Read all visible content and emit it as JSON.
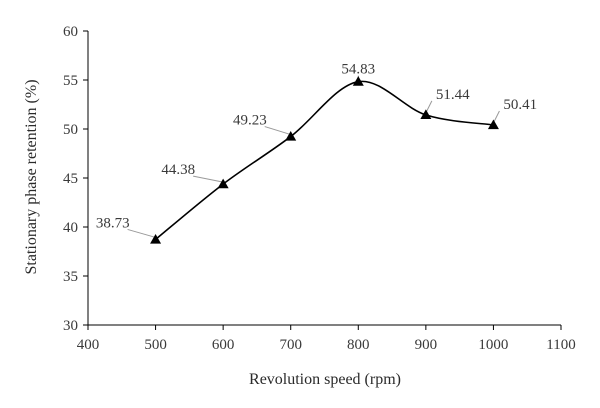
{
  "chart_data": {
    "type": "line",
    "xlabel": "Revolution speed (rpm)",
    "ylabel": "Stationary phase retention (%)",
    "xlim": [
      400,
      1100
    ],
    "ylim": [
      30,
      60
    ],
    "xticks": [
      400,
      500,
      600,
      700,
      800,
      900,
      1000,
      1100
    ],
    "yticks": [
      30,
      35,
      40,
      45,
      50,
      55,
      60
    ],
    "grid": false,
    "smooth": true,
    "marker": "triangle",
    "colors": {
      "line": "#000000",
      "marker": "#000000",
      "axis": "#000000",
      "leader": "#9a9a9a"
    },
    "series": [
      {
        "x": [
          500,
          600,
          700,
          800,
          900,
          1000
        ],
        "values": [
          38.73,
          44.38,
          49.23,
          54.83,
          51.44,
          50.41
        ],
        "labels": [
          "38.73",
          "44.38",
          "49.23",
          "54.83",
          "51.44",
          "50.41"
        ]
      }
    ]
  }
}
